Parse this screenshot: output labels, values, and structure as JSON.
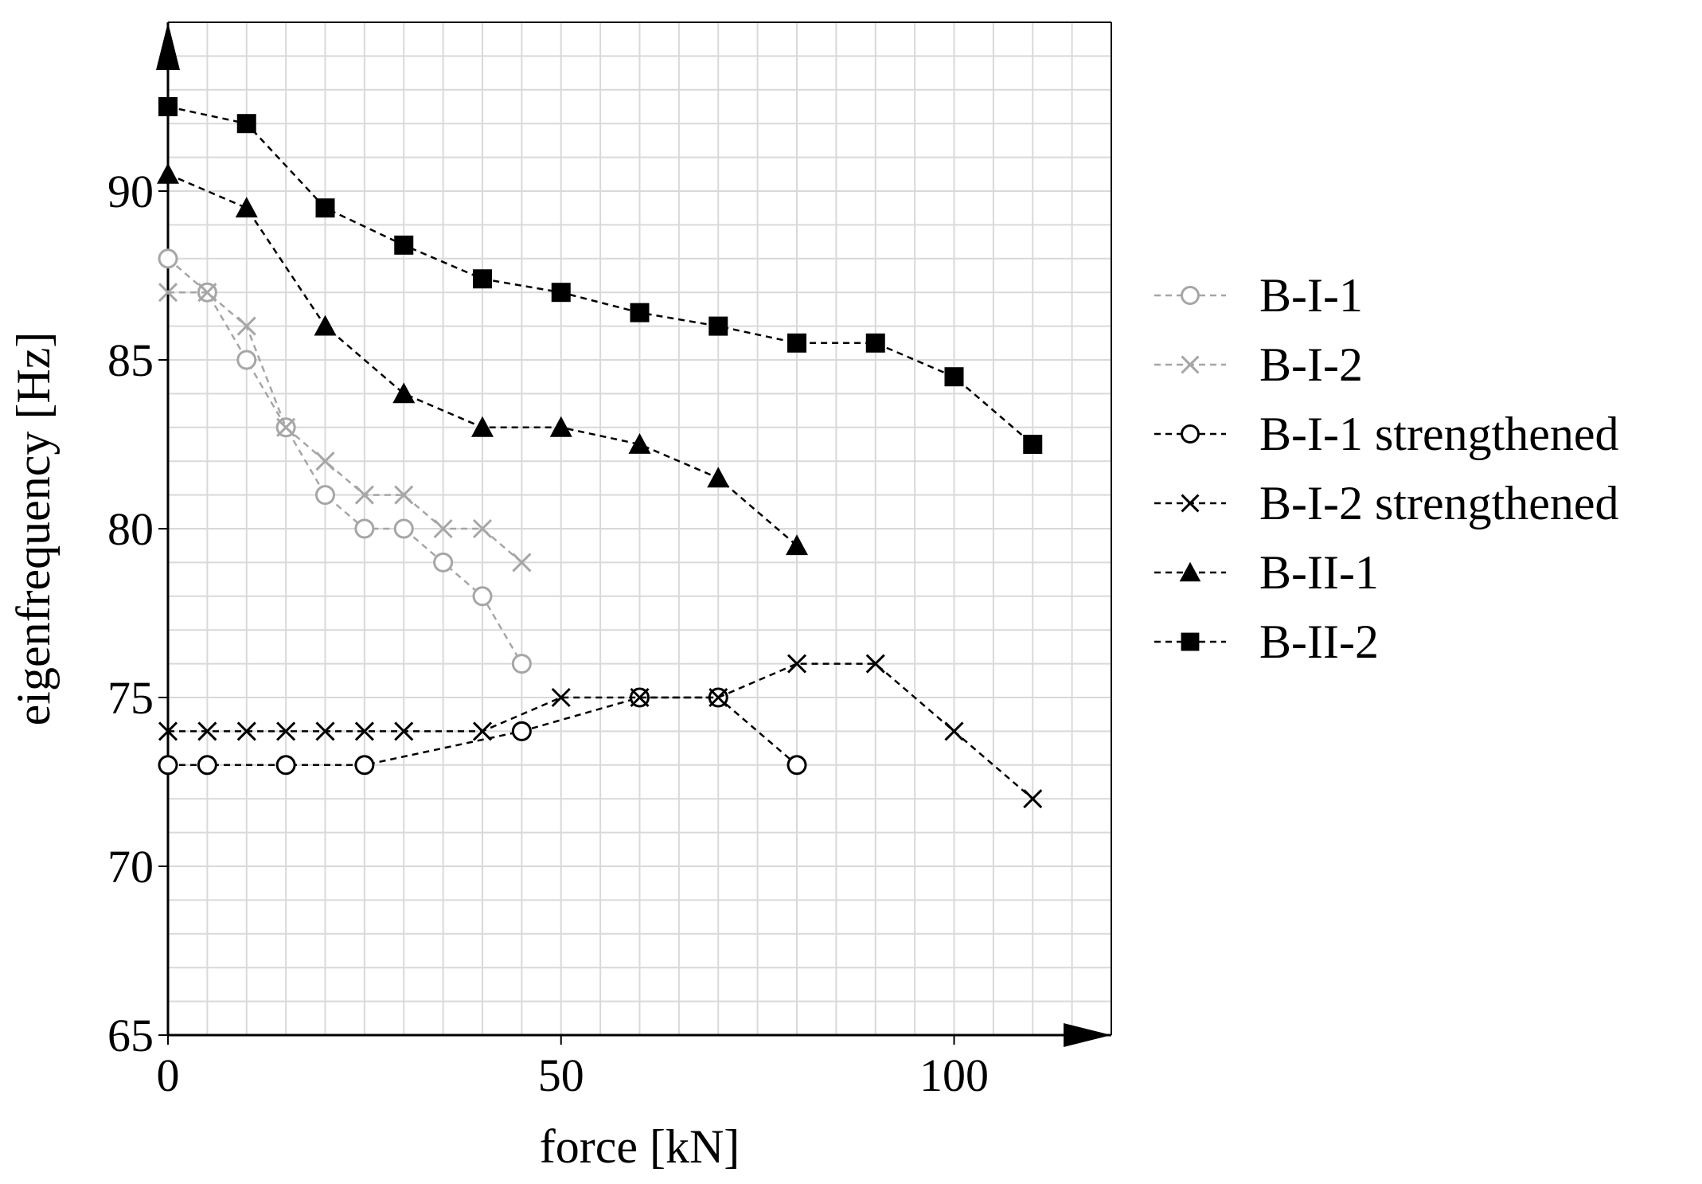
{
  "chart_data": {
    "type": "line",
    "title": "",
    "xlabel": "force [kN]",
    "ylabel": "eigenfrequency [Hz]",
    "xlim": [
      0,
      120
    ],
    "ylim": [
      65,
      95
    ],
    "x_ticks": [
      0,
      50,
      100
    ],
    "y_ticks": [
      65,
      70,
      75,
      80,
      85,
      90
    ],
    "x_tick_labels": [
      "0",
      "50",
      "100"
    ],
    "y_tick_labels": [
      "65",
      "70",
      "75",
      "80",
      "85",
      "90"
    ],
    "grid": true,
    "minor_grid_step_x": 5,
    "minor_grid_step_y": 1,
    "legend_position": "right",
    "series": [
      {
        "name": "B-I-1",
        "color": "#a6a6a6",
        "marker": "circle-open",
        "points": [
          [
            0,
            88
          ],
          [
            5,
            87
          ],
          [
            10,
            85
          ],
          [
            15,
            83
          ],
          [
            20,
            81
          ],
          [
            25,
            80
          ],
          [
            30,
            80
          ],
          [
            35,
            79
          ],
          [
            40,
            78
          ],
          [
            45,
            76
          ]
        ]
      },
      {
        "name": "B-I-2",
        "color": "#a6a6a6",
        "marker": "x",
        "points": [
          [
            0,
            87
          ],
          [
            5,
            87
          ],
          [
            10,
            86
          ],
          [
            15,
            83
          ],
          [
            20,
            82
          ],
          [
            25,
            81
          ],
          [
            30,
            81
          ],
          [
            35,
            80
          ],
          [
            40,
            80
          ],
          [
            45,
            79
          ]
        ]
      },
      {
        "name": "B-I-1 strengthened",
        "color": "#000000",
        "marker": "circle-open",
        "points": [
          [
            0,
            73
          ],
          [
            5,
            73
          ],
          [
            15,
            73
          ],
          [
            25,
            73
          ],
          [
            45,
            74
          ],
          [
            60,
            75
          ],
          [
            70,
            75
          ],
          [
            80,
            73
          ]
        ]
      },
      {
        "name": "B-I-2 strengthened",
        "color": "#000000",
        "marker": "x",
        "points": [
          [
            0,
            74
          ],
          [
            5,
            74
          ],
          [
            10,
            74
          ],
          [
            15,
            74
          ],
          [
            20,
            74
          ],
          [
            25,
            74
          ],
          [
            30,
            74
          ],
          [
            40,
            74
          ],
          [
            50,
            75
          ],
          [
            60,
            75
          ],
          [
            70,
            75
          ],
          [
            80,
            76
          ],
          [
            90,
            76
          ],
          [
            100,
            74
          ],
          [
            110,
            72
          ]
        ]
      },
      {
        "name": "B-II-1",
        "color": "#000000",
        "marker": "triangle-filled",
        "points": [
          [
            0,
            90.5
          ],
          [
            10,
            89.5
          ],
          [
            20,
            86
          ],
          [
            30,
            84
          ],
          [
            40,
            83
          ],
          [
            50,
            83
          ],
          [
            60,
            82.5
          ],
          [
            70,
            81.5
          ],
          [
            80,
            79.5
          ]
        ]
      },
      {
        "name": "B-II-2",
        "color": "#000000",
        "marker": "square-filled",
        "points": [
          [
            0,
            92.5
          ],
          [
            10,
            92
          ],
          [
            20,
            89.5
          ],
          [
            30,
            88.4
          ],
          [
            40,
            87.4
          ],
          [
            50,
            87
          ],
          [
            60,
            86.4
          ],
          [
            70,
            86
          ],
          [
            80,
            85.5
          ],
          [
            90,
            85.5
          ],
          [
            100,
            84.5
          ],
          [
            110,
            82.5
          ]
        ]
      }
    ]
  }
}
